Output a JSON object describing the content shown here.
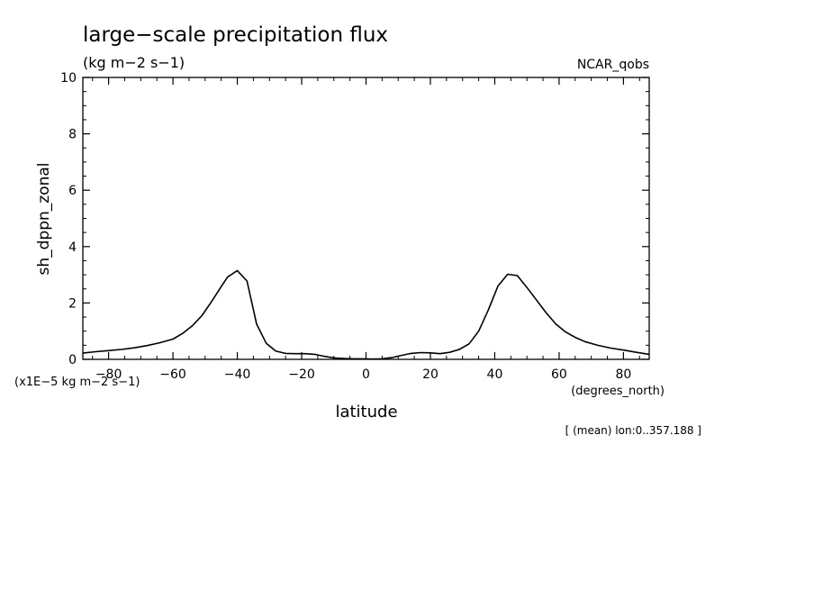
{
  "chart_data": {
    "type": "line",
    "title": "large−scale precipitation flux",
    "units_label": "(kg m−2 s−1)",
    "dataset_label": "NCAR_qobs",
    "ylabel": "sh_dppn_zonal",
    "xlabel": "latitude",
    "x_units_label": "(degrees_north)",
    "y_scale_label": "(x1E−5 kg m−2 s−1)",
    "footnote": "[ (mean) lon:0..357.188 ]",
    "xlim": [
      -88,
      88
    ],
    "ylim": [
      0,
      10
    ],
    "x_ticks": [
      -80,
      -60,
      -40,
      -20,
      0,
      20,
      40,
      60,
      80
    ],
    "x_tick_labels": [
      "−80",
      "−60",
      "−40",
      "−20",
      "0",
      "20",
      "40",
      "60",
      "80"
    ],
    "y_ticks": [
      0,
      2,
      4,
      6,
      8,
      10
    ],
    "y_tick_labels": [
      "0",
      "2",
      "4",
      "6",
      "8",
      "10"
    ],
    "grid": false,
    "series": [
      {
        "x": [
          -88,
          -84,
          -80,
          -76,
          -72,
          -68,
          -64,
          -60,
          -57,
          -54,
          -51,
          -48,
          -45,
          -43,
          -40,
          -37,
          -34,
          -31,
          -28,
          -25,
          -22,
          -19,
          -16,
          -13,
          -10,
          -7,
          -4,
          -1,
          2,
          5,
          8,
          11,
          14,
          17,
          20,
          23,
          26,
          29,
          32,
          35,
          38,
          41,
          44,
          47,
          50,
          53,
          56,
          59,
          62,
          65,
          68,
          72,
          76,
          80,
          84,
          88
        ],
        "y": [
          0.22,
          0.27,
          0.31,
          0.35,
          0.41,
          0.49,
          0.59,
          0.72,
          0.92,
          1.19,
          1.55,
          2.05,
          2.58,
          2.92,
          3.15,
          2.78,
          1.25,
          0.57,
          0.29,
          0.21,
          0.2,
          0.2,
          0.18,
          0.11,
          0.05,
          0.03,
          0.02,
          0.02,
          0.01,
          0.02,
          0.06,
          0.14,
          0.21,
          0.24,
          0.23,
          0.2,
          0.25,
          0.35,
          0.55,
          1.0,
          1.75,
          2.6,
          3.02,
          2.97,
          2.55,
          2.1,
          1.65,
          1.25,
          0.97,
          0.78,
          0.63,
          0.5,
          0.4,
          0.33,
          0.25,
          0.18
        ]
      }
    ]
  }
}
